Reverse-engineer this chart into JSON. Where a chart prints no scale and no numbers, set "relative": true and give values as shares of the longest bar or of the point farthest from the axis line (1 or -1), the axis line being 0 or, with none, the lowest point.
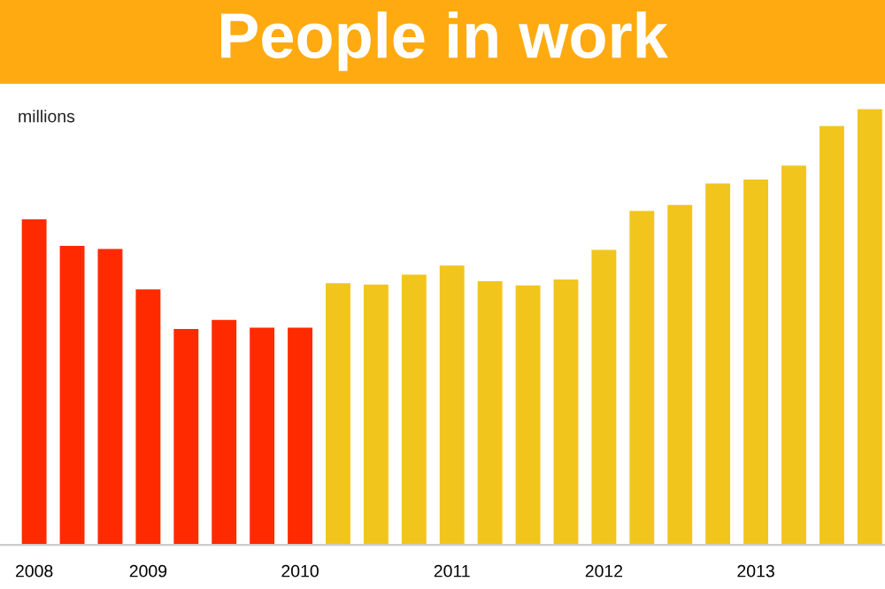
{
  "chart_data": {
    "type": "bar",
    "title": "People in work",
    "ylabel": "millions",
    "relative": true,
    "categories": [
      "2008",
      null,
      null,
      "2009",
      null,
      null,
      null,
      "2010",
      null,
      null,
      null,
      "2011",
      null,
      null,
      null,
      "2012",
      null,
      null,
      null,
      "2013",
      null,
      null,
      null
    ],
    "values": [
      0.747,
      0.686,
      0.679,
      0.586,
      0.495,
      0.516,
      0.498,
      0.498,
      0.6,
      0.597,
      0.62,
      0.641,
      0.605,
      0.595,
      0.609,
      0.677,
      0.766,
      0.78,
      0.829,
      0.838,
      0.87,
      0.961,
      1
    ],
    "colors": [
      "#ff2a00",
      "#ff2a00",
      "#ff2a00",
      "#ff2a00",
      "#ff2a00",
      "#ff2a00",
      "#ff2a00",
      "#ff2a00",
      "#f2c51c",
      "#f2c51c",
      "#f2c51c",
      "#f2c51c",
      "#f2c51c",
      "#f2c51c",
      "#f2c51c",
      "#f2c51c",
      "#f2c51c",
      "#f2c51c",
      "#f2c51c",
      "#f2c51c",
      "#f2c51c",
      "#f2c51c",
      "#f2c51c"
    ],
    "grid": false,
    "legend": false
  }
}
